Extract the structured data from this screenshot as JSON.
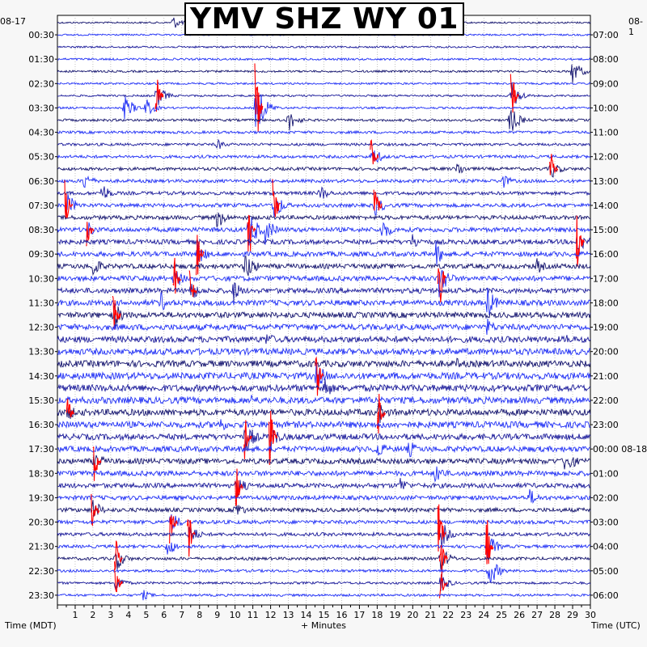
{
  "title": "YMV SHZ WY 01",
  "left_date": "08-17",
  "right_date": "08-1",
  "left_axis_label": "Time (MDT)",
  "right_axis_label": "Time (UTC)",
  "x_axis_label": "+ Minutes",
  "colors": {
    "trace_dark": "#14146e",
    "trace_mid": "#1a1a9a",
    "trace_blue": "#1f2ff5",
    "event_red": "#ff0000",
    "grid": "#9a9a9a",
    "background": "#ffffff",
    "page": "#f7f7f7"
  },
  "chart_data": {
    "type": "helicorder",
    "x_range": [
      0,
      30
    ],
    "x_ticks": [
      "1",
      "2",
      "3",
      "4",
      "5",
      "6",
      "7",
      "8",
      "9",
      "10",
      "11",
      "12",
      "13",
      "14",
      "15",
      "16",
      "17",
      "18",
      "19",
      "20",
      "21",
      "22",
      "23",
      "24",
      "25",
      "26",
      "27",
      "28",
      "29",
      "30"
    ],
    "rows_per_hour": 2,
    "row_count": 48,
    "left_labels": [
      "00:30",
      "01:30",
      "02:30",
      "03:30",
      "04:30",
      "05:30",
      "06:30",
      "07:30",
      "08:30",
      "09:30",
      "10:30",
      "11:30",
      "12:30",
      "13:30",
      "14:30",
      "15:30",
      "16:30",
      "17:30",
      "18:30",
      "19:30",
      "20:30",
      "21:30",
      "22:30",
      "23:30"
    ],
    "right_labels": [
      "07:00",
      "08:00",
      "09:00",
      "10:00",
      "11:00",
      "12:00",
      "13:00",
      "14:00",
      "15:00",
      "16:00",
      "17:00",
      "18:00",
      "19:00",
      "20:00",
      "21:00",
      "22:00",
      "23:00",
      "00:00 08-18",
      "01:00",
      "02:00",
      "03:00",
      "04:00",
      "05:00",
      "06:00"
    ],
    "color_cycle": [
      "trace_dark",
      "event_red",
      "trace_mid",
      "trace_blue"
    ],
    "row_noise": [
      0.22,
      0.22,
      0.24,
      0.26,
      0.26,
      0.25,
      0.25,
      0.26,
      0.32,
      0.34,
      0.34,
      0.38,
      0.4,
      0.42,
      0.44,
      0.48,
      0.52,
      0.58,
      0.6,
      0.62,
      0.62,
      0.64,
      0.66,
      0.7,
      0.72,
      0.76,
      0.78,
      0.8,
      0.82,
      0.86,
      0.86,
      0.84,
      0.82,
      0.8,
      0.76,
      0.72,
      0.7,
      0.64,
      0.6,
      0.55,
      0.52,
      0.48,
      0.44,
      0.4,
      0.38,
      0.34,
      0.3,
      0.3
    ],
    "events": [
      {
        "row": 0,
        "minute": 6.5,
        "amplitude": 1.2,
        "color": "trace_blue"
      },
      {
        "row": 4,
        "minute": 29.0,
        "amplitude": 2.2,
        "color": "trace_blue"
      },
      {
        "row": 6,
        "minute": 5.6,
        "amplitude": 2.0,
        "color": "event_red"
      },
      {
        "row": 6,
        "minute": 25.6,
        "amplitude": 2.4,
        "color": "event_red"
      },
      {
        "row": 7,
        "minute": 3.8,
        "amplitude": 2.2,
        "color": "trace_blue"
      },
      {
        "row": 7,
        "minute": 5.0,
        "amplitude": 1.6,
        "color": "trace_blue"
      },
      {
        "row": 7,
        "minute": 11.2,
        "amplitude": 4.5,
        "color": "event_red"
      },
      {
        "row": 8,
        "minute": 13.0,
        "amplitude": 2.0,
        "color": "trace_dark"
      },
      {
        "row": 8,
        "minute": 25.5,
        "amplitude": 2.5,
        "color": "trace_dark"
      },
      {
        "row": 10,
        "minute": 9.0,
        "amplitude": 1.0,
        "color": "trace_blue"
      },
      {
        "row": 11,
        "minute": 17.7,
        "amplitude": 2.0,
        "color": "event_red"
      },
      {
        "row": 12,
        "minute": 22.5,
        "amplitude": 1.4,
        "color": "trace_dark"
      },
      {
        "row": 12,
        "minute": 27.8,
        "amplitude": 1.8,
        "color": "event_red"
      },
      {
        "row": 13,
        "minute": 1.5,
        "amplitude": 1.6,
        "color": "trace_blue"
      },
      {
        "row": 13,
        "minute": 25.0,
        "amplitude": 1.5,
        "color": "trace_dark"
      },
      {
        "row": 14,
        "minute": 2.5,
        "amplitude": 1.8,
        "color": "trace_blue"
      },
      {
        "row": 14,
        "minute": 14.8,
        "amplitude": 1.5,
        "color": "trace_blue"
      },
      {
        "row": 15,
        "minute": 0.5,
        "amplitude": 2.4,
        "color": "event_red"
      },
      {
        "row": 15,
        "minute": 12.2,
        "amplitude": 2.6,
        "color": "event_red"
      },
      {
        "row": 15,
        "minute": 17.9,
        "amplitude": 2.0,
        "color": "event_red"
      },
      {
        "row": 16,
        "minute": 9.0,
        "amplitude": 2.0,
        "color": "trace_dark"
      },
      {
        "row": 17,
        "minute": 1.7,
        "amplitude": 1.6,
        "color": "event_red"
      },
      {
        "row": 17,
        "minute": 10.8,
        "amplitude": 3.5,
        "color": "event_red"
      },
      {
        "row": 17,
        "minute": 11.7,
        "amplitude": 2.5,
        "color": "trace_dark"
      },
      {
        "row": 17,
        "minute": 18.3,
        "amplitude": 2.0,
        "color": "trace_dark"
      },
      {
        "row": 18,
        "minute": 20.0,
        "amplitude": 1.6,
        "color": "trace_dark"
      },
      {
        "row": 18,
        "minute": 29.3,
        "amplitude": 2.6,
        "color": "event_red"
      },
      {
        "row": 19,
        "minute": 7.9,
        "amplitude": 2.2,
        "color": "event_red"
      },
      {
        "row": 19,
        "minute": 21.3,
        "amplitude": 2.2,
        "color": "trace_dark"
      },
      {
        "row": 20,
        "minute": 2.0,
        "amplitude": 2.0,
        "color": "trace_blue"
      },
      {
        "row": 20,
        "minute": 10.6,
        "amplitude": 2.8,
        "color": "trace_blue"
      },
      {
        "row": 20,
        "minute": 27.0,
        "amplitude": 1.4,
        "color": "trace_blue"
      },
      {
        "row": 21,
        "minute": 6.6,
        "amplitude": 2.0,
        "color": "event_red"
      },
      {
        "row": 21,
        "minute": 21.5,
        "amplitude": 3.5,
        "color": "event_red"
      },
      {
        "row": 22,
        "minute": 7.5,
        "amplitude": 2.0,
        "color": "event_red"
      },
      {
        "row": 22,
        "minute": 9.9,
        "amplitude": 2.0,
        "color": "trace_dark"
      },
      {
        "row": 23,
        "minute": 5.8,
        "amplitude": 1.8,
        "color": "trace_blue"
      },
      {
        "row": 23,
        "minute": 24.2,
        "amplitude": 2.8,
        "color": "trace_blue"
      },
      {
        "row": 24,
        "minute": 3.2,
        "amplitude": 2.4,
        "color": "event_red"
      },
      {
        "row": 25,
        "minute": 24.2,
        "amplitude": 1.6,
        "color": "trace_blue"
      },
      {
        "row": 26,
        "minute": 11.8,
        "amplitude": 1.4,
        "color": "trace_blue"
      },
      {
        "row": 26,
        "minute": 28.7,
        "amplitude": 1.0,
        "color": "trace_blue"
      },
      {
        "row": 28,
        "minute": 22.5,
        "amplitude": 1.0,
        "color": "trace_dark"
      },
      {
        "row": 29,
        "minute": 14.6,
        "amplitude": 2.6,
        "color": "event_red"
      },
      {
        "row": 30,
        "minute": 15.0,
        "amplitude": 2.2,
        "color": "trace_blue"
      },
      {
        "row": 31,
        "minute": 10.9,
        "amplitude": 1.2,
        "color": "trace_blue"
      },
      {
        "row": 32,
        "minute": 0.6,
        "amplitude": 1.5,
        "color": "event_red"
      },
      {
        "row": 32,
        "minute": 18.1,
        "amplitude": 2.0,
        "color": "event_red"
      },
      {
        "row": 33,
        "minute": 9.1,
        "amplitude": 1.6,
        "color": "trace_dark"
      },
      {
        "row": 34,
        "minute": 10.6,
        "amplitude": 3.0,
        "color": "event_red"
      },
      {
        "row": 34,
        "minute": 12.0,
        "amplitude": 2.6,
        "color": "event_red"
      },
      {
        "row": 35,
        "minute": 17.9,
        "amplitude": 2.2,
        "color": "trace_dark"
      },
      {
        "row": 35,
        "minute": 19.8,
        "amplitude": 1.6,
        "color": "trace_dark"
      },
      {
        "row": 36,
        "minute": 2.1,
        "amplitude": 2.0,
        "color": "event_red"
      },
      {
        "row": 36,
        "minute": 28.6,
        "amplitude": 2.6,
        "color": "trace_dark"
      },
      {
        "row": 37,
        "minute": 21.3,
        "amplitude": 2.0,
        "color": "trace_dark"
      },
      {
        "row": 38,
        "minute": 10.1,
        "amplitude": 2.2,
        "color": "event_red"
      },
      {
        "row": 38,
        "minute": 19.3,
        "amplitude": 1.6,
        "color": "trace_dark"
      },
      {
        "row": 39,
        "minute": 26.6,
        "amplitude": 1.6,
        "color": "trace_blue"
      },
      {
        "row": 40,
        "minute": 2.0,
        "amplitude": 2.0,
        "color": "event_red"
      },
      {
        "row": 40,
        "minute": 10.0,
        "amplitude": 1.8,
        "color": "trace_blue"
      },
      {
        "row": 41,
        "minute": 6.4,
        "amplitude": 2.0,
        "color": "event_red"
      },
      {
        "row": 42,
        "minute": 7.4,
        "amplitude": 2.2,
        "color": "event_red"
      },
      {
        "row": 42,
        "minute": 21.5,
        "amplitude": 3.0,
        "color": "event_red"
      },
      {
        "row": 43,
        "minute": 6.2,
        "amplitude": 1.8,
        "color": "trace_blue"
      },
      {
        "row": 43,
        "minute": 24.2,
        "amplitude": 2.6,
        "color": "event_red"
      },
      {
        "row": 44,
        "minute": 3.3,
        "amplitude": 2.2,
        "color": "event_red"
      },
      {
        "row": 44,
        "minute": 21.6,
        "amplitude": 2.2,
        "color": "event_red"
      },
      {
        "row": 45,
        "minute": 24.3,
        "amplitude": 2.8,
        "color": "trace_blue"
      },
      {
        "row": 46,
        "minute": 3.3,
        "amplitude": 1.6,
        "color": "event_red"
      },
      {
        "row": 46,
        "minute": 21.6,
        "amplitude": 1.6,
        "color": "event_red"
      },
      {
        "row": 47,
        "minute": 4.8,
        "amplitude": 1.0,
        "color": "trace_dark"
      }
    ]
  }
}
